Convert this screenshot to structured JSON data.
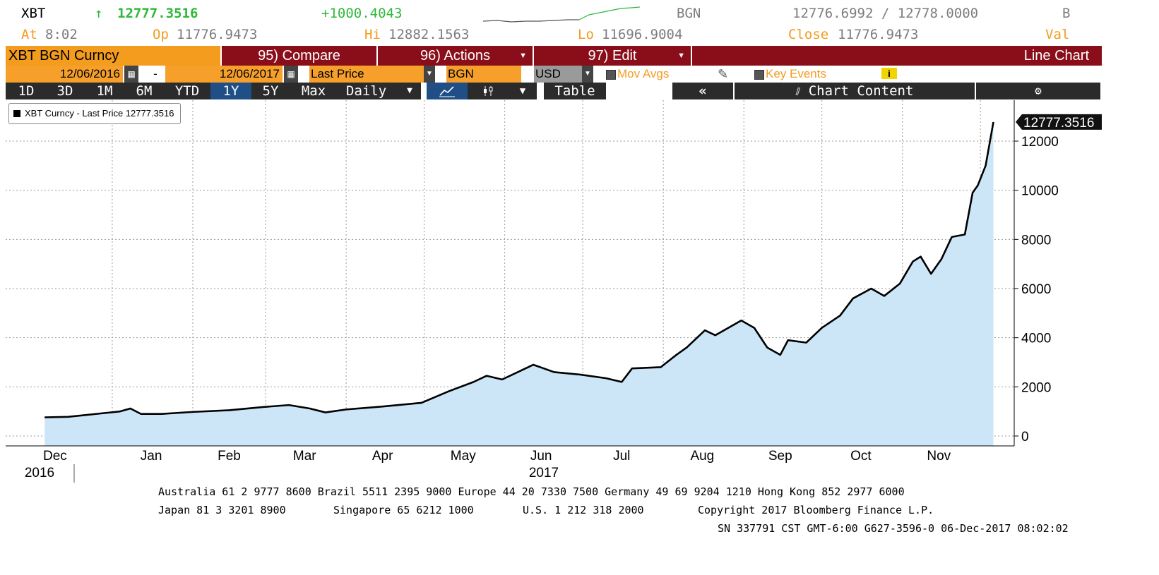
{
  "quote": {
    "ticker": "XBT",
    "arrow": "↑",
    "last": "12777.3516",
    "change": "+1000.4043",
    "source": "BGN",
    "bid_ask": "12776.6992 / 12778.0000",
    "right_code": "B",
    "at_label": "At",
    "at_time": "8:02",
    "op_label": "Op",
    "op_value": "11776.9473",
    "hi_label": "Hi",
    "hi_value": "12882.1563",
    "lo_label": "Lo",
    "lo_value": "11696.9004",
    "close_label": "Close",
    "close_value": "11776.9473",
    "val_label": "Val"
  },
  "menu": {
    "security": "XBT BGN Curncy",
    "compare": "95) Compare",
    "actions": "96) Actions",
    "edit": "97) Edit",
    "chart_type": "Line Chart"
  },
  "controls": {
    "start_date": "12/06/2016",
    "dash": "-",
    "end_date": "12/06/2017",
    "field": "Last Price",
    "source": "BGN",
    "currency": "USD",
    "mov_avgs": "Mov Avgs",
    "key_events": "Key Events",
    "info": "i"
  },
  "periods": [
    "1D",
    "3D",
    "1M",
    "6M",
    "YTD",
    "1Y",
    "5Y",
    "Max"
  ],
  "active_period": "1Y",
  "frequency": "Daily",
  "table_label": "Table",
  "collapse_label": "«",
  "chart_content_label": "Chart Content",
  "settings_icon": "gear-icon",
  "colors": {
    "orange": "#f39c1e",
    "maroon": "#8a0e1a",
    "green": "#2fb83a",
    "area_fill": "#cce6f8",
    "line": "#000000"
  },
  "footer": {
    "line1": "Australia 61 2 9777 8600 Brazil 5511 2395 9000 Europe 44 20 7330 7500 Germany 49 69 9204 1210 Hong Kong 852 2977 6000",
    "line2a": "Japan 81 3 3201 8900",
    "line2b": "Singapore 65 6212 1000",
    "line2c": "U.S. 1 212 318 2000",
    "line2d": "Copyright 2017 Bloomberg Finance L.P.",
    "line3": "SN 337791 CST  GMT-6:00 G627-3596-0 06-Dec-2017 08:02:02"
  },
  "chart_data": {
    "type": "area",
    "legend": "XBT Curncy - Last Price 12777.3516",
    "last_label": "12777.3516",
    "ylim": [
      -300,
      13500
    ],
    "yticks": [
      0,
      2000,
      4000,
      6000,
      8000,
      10000,
      12000
    ],
    "x_ticks": [
      "Dec",
      "Jan",
      "Feb",
      "Mar",
      "Apr",
      "May",
      "Jun",
      "Jul",
      "Aug",
      "Sep",
      "Oct",
      "Nov"
    ],
    "x_years": [
      "2016",
      "2017"
    ],
    "grid": true,
    "x": [
      "2016-12-06",
      "2016-12-15",
      "2016-12-25",
      "2017-01-04",
      "2017-01-08",
      "2017-01-12",
      "2017-01-20",
      "2017-02-01",
      "2017-02-15",
      "2017-02-28",
      "2017-03-10",
      "2017-03-18",
      "2017-03-24",
      "2017-04-01",
      "2017-04-15",
      "2017-04-30",
      "2017-05-10",
      "2017-05-20",
      "2017-05-25",
      "2017-05-31",
      "2017-06-06",
      "2017-06-12",
      "2017-06-20",
      "2017-06-30",
      "2017-07-10",
      "2017-07-16",
      "2017-07-20",
      "2017-07-31",
      "2017-08-06",
      "2017-08-10",
      "2017-08-17",
      "2017-08-21",
      "2017-08-31",
      "2017-09-05",
      "2017-09-10",
      "2017-09-15",
      "2017-09-18",
      "2017-09-25",
      "2017-10-01",
      "2017-10-08",
      "2017-10-13",
      "2017-10-20",
      "2017-10-25",
      "2017-10-31",
      "2017-11-05",
      "2017-11-08",
      "2017-11-12",
      "2017-11-16",
      "2017-11-20",
      "2017-11-25",
      "2017-11-28",
      "2017-11-30",
      "2017-12-03",
      "2017-12-06"
    ],
    "y": [
      760,
      780,
      890,
      1000,
      1120,
      900,
      900,
      980,
      1050,
      1180,
      1260,
      1120,
      960,
      1080,
      1200,
      1350,
      1800,
      2200,
      2450,
      2300,
      2600,
      2900,
      2600,
      2500,
      2350,
      2200,
      2750,
      2800,
      3300,
      3600,
      4300,
      4100,
      4700,
      4400,
      3600,
      3300,
      3900,
      3800,
      4400,
      4900,
      5600,
      6000,
      5700,
      6200,
      7100,
      7300,
      6600,
      7200,
      8100,
      8200,
      9900,
      10200,
      11000,
      12777
    ]
  }
}
